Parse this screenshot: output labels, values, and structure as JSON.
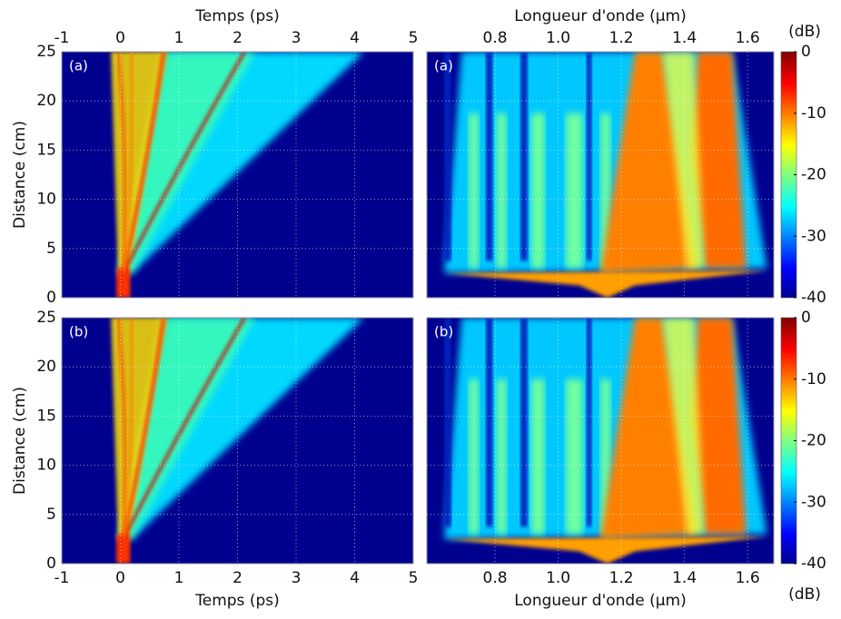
{
  "chart_data": [
    {
      "type": "heatmap",
      "panel_label": "(a)",
      "xlabel": "Temps (ps)",
      "ylabel": "Distance (cm)",
      "xaxis": "top",
      "xlim": [
        -1,
        5
      ],
      "xticks": [
        -1,
        0,
        1,
        2,
        3,
        4,
        5
      ],
      "ylim": [
        0,
        25
      ],
      "yticks": [
        0,
        5,
        10,
        15,
        20,
        25
      ],
      "grid": true
    },
    {
      "type": "heatmap",
      "panel_label": "(a)",
      "xlabel": "Longueur d'onde (µm)",
      "xaxis": "top",
      "xlim": [
        0.584,
        1.683
      ],
      "xticks": [
        0.8,
        {
          "value": 1,
          "label": "1.0"
        },
        1.2,
        1.4,
        1.6
      ],
      "ylim": [
        0,
        25
      ],
      "yticks": [
        0,
        5,
        10,
        15,
        20,
        25
      ],
      "grid": true,
      "colorbar": {
        "label": "(dB)",
        "label_position": "top",
        "lim": [
          -40,
          0
        ],
        "ticks": [
          -40,
          -30,
          -20,
          -10,
          0
        ]
      }
    },
    {
      "type": "heatmap",
      "panel_label": "(b)",
      "xlabel": "Temps (ps)",
      "ylabel": "Distance (cm)",
      "xaxis": "bottom",
      "xlim": [
        -1,
        5
      ],
      "xticks": [
        -1,
        0,
        1,
        2,
        3,
        4,
        5
      ],
      "ylim": [
        0,
        25
      ],
      "yticks": [
        0,
        5,
        10,
        15,
        20,
        25
      ],
      "grid": true
    },
    {
      "type": "heatmap",
      "panel_label": "(b)",
      "xlabel": "Longueur d'onde (µm)",
      "xaxis": "bottom",
      "xlim": [
        0.584,
        1.683
      ],
      "xticks": [
        0.8,
        {
          "value": 1,
          "label": "1.0"
        },
        1.2,
        1.4,
        1.6
      ],
      "ylim": [
        0,
        25
      ],
      "yticks": [
        0,
        5,
        10,
        15,
        20,
        25
      ],
      "grid": true,
      "colorbar": {
        "label": "(dB)",
        "label_position": "bottom",
        "lim": [
          -40,
          0
        ],
        "ticks": [
          -40,
          -30,
          -20,
          -10,
          0
        ]
      }
    }
  ]
}
